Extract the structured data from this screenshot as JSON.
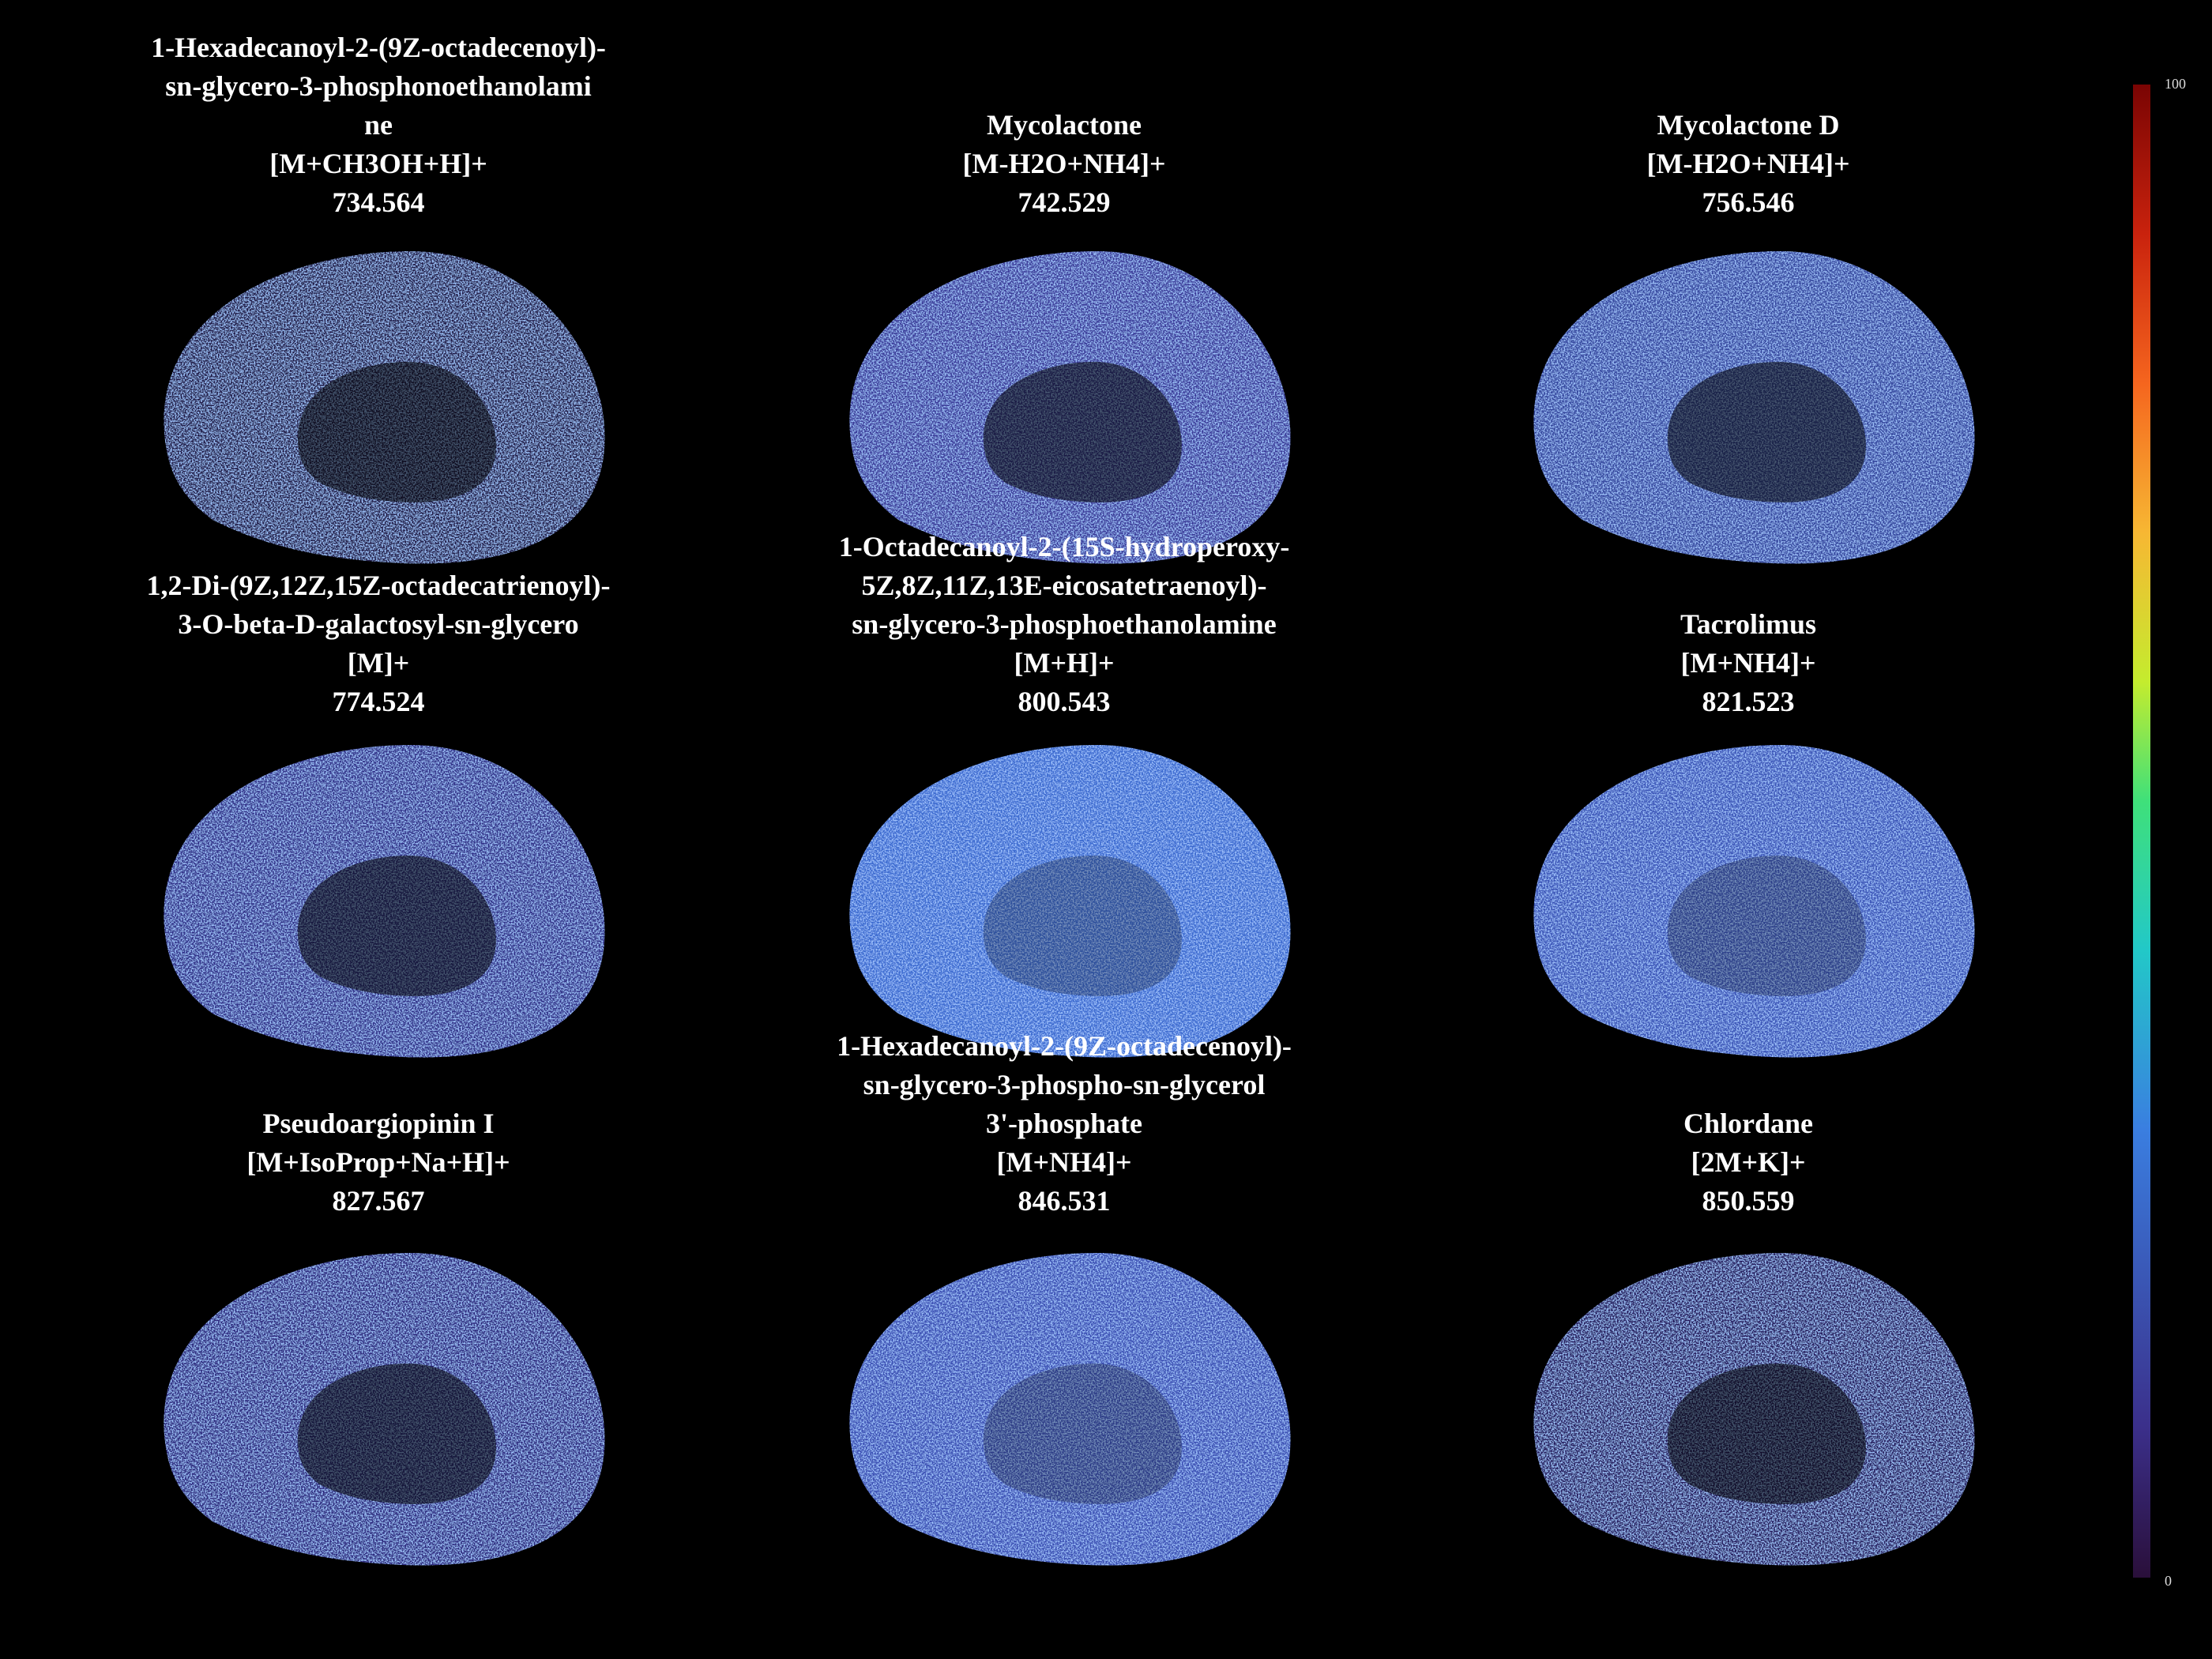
{
  "panels": [
    {
      "name_lines": [
        "1-Hexadecanoyl-2-(9Z-octadecenoyl)-",
        "sn-glycero-3-phosphonoethanolami",
        "ne"
      ],
      "adduct": "[M+CH3OH+H]+",
      "mz": "734.564"
    },
    {
      "name_lines": [
        "Mycolactone"
      ],
      "adduct": "[M-H2O+NH4]+",
      "mz": "742.529"
    },
    {
      "name_lines": [
        "Mycolactone D"
      ],
      "adduct": "[M-H2O+NH4]+",
      "mz": "756.546"
    },
    {
      "name_lines": [
        "1,2-Di-(9Z,12Z,15Z-octadecatrienoyl)-",
        "3-O-beta-D-galactosyl-sn-glycero"
      ],
      "adduct": "[M]+",
      "mz": "774.524"
    },
    {
      "name_lines": [
        "1-Octadecanoyl-2-(15S-hydroperoxy-",
        "5Z,8Z,11Z,13E-eicosatetraenoyl)-",
        "sn-glycero-3-phosphoethanolamine"
      ],
      "adduct": "[M+H]+",
      "mz": "800.543"
    },
    {
      "name_lines": [
        "Tacrolimus"
      ],
      "adduct": "[M+NH4]+",
      "mz": "821.523"
    },
    {
      "name_lines": [
        "Pseudoargiopinin I"
      ],
      "adduct": "[M+IsoProp+Na+H]+",
      "mz": "827.567"
    },
    {
      "name_lines": [
        "1-Hexadecanoyl-2-(9Z-octadecenoyl)-",
        "sn-glycero-3-phospho-sn-glycerol",
        "3'-phosphate"
      ],
      "adduct": "[M+NH4]+",
      "mz": "846.531"
    },
    {
      "name_lines": [
        "Chlordane"
      ],
      "adduct": "[2M+K]+",
      "mz": "850.559"
    }
  ],
  "colorbar": {
    "max_label": "100",
    "min_label": "0"
  }
}
